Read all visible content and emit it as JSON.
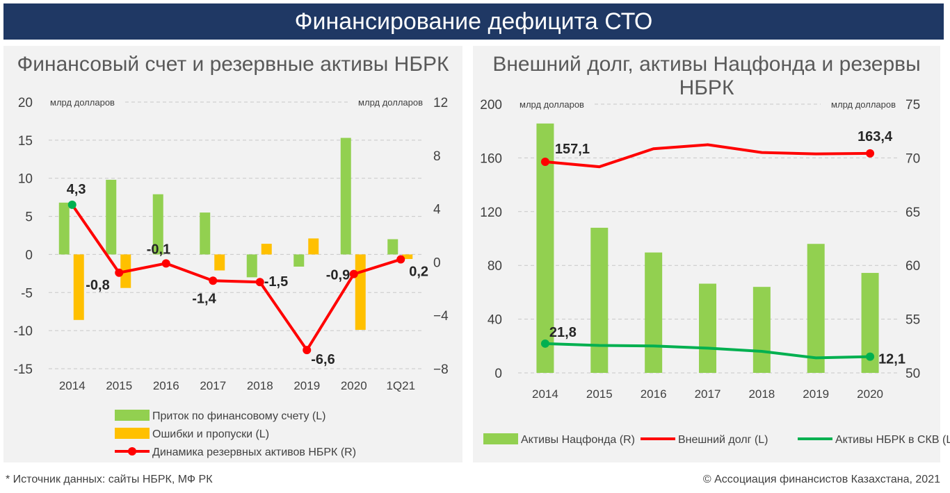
{
  "header": {
    "title": "Финансирование дефицита СТО"
  },
  "footer": {
    "source": "* Источник данных: сайты НБРК, МФ РК",
    "copyright": "© Ассоциация финансистов Казахстана, 2021"
  },
  "chart_data": [
    {
      "type": "bar",
      "title": "Финансовый счет и резервные активы НБРК",
      "categories": [
        "2014",
        "2015",
        "2016",
        "2017",
        "2018",
        "2019",
        "2020",
        "1Q21"
      ],
      "left_unit": "млрд долларов",
      "right_unit": "млрд долларов",
      "ylim": [
        -15,
        20
      ],
      "yticks": [
        20,
        15,
        10,
        5,
        0,
        -5,
        -10,
        -15
      ],
      "y2lim": [
        -8,
        12
      ],
      "y2ticks": [
        "12",
        "8",
        "4",
        "0",
        "-4",
        "-8"
      ],
      "series": [
        {
          "name": "Приток по финансовому счету (L)",
          "type": "bar",
          "axis": "left",
          "color": "#92d050",
          "values": [
            6.8,
            9.8,
            7.9,
            5.5,
            -3.0,
            -1.6,
            15.3,
            2.0
          ]
        },
        {
          "name": "Ошибки и пропуски (L)",
          "type": "bar",
          "axis": "left",
          "color": "#ffc000",
          "values": [
            -8.6,
            -4.4,
            0,
            -2.1,
            1.4,
            2.1,
            -9.9,
            -0.6
          ]
        },
        {
          "name": "Динамика резервных активов НБРК (R)",
          "type": "line",
          "axis": "right",
          "color": "#ff0000",
          "values": [
            4.3,
            -0.8,
            -0.1,
            -1.4,
            -1.5,
            -6.6,
            -0.9,
            0.2
          ],
          "labels": [
            "4,3",
            "-0,8",
            "-0,1",
            "-1,4",
            "-1,5",
            "-6,6",
            "-0,9",
            "0,2"
          ]
        }
      ],
      "legend": "bottom"
    },
    {
      "type": "bar",
      "title": "Внешний долг, активы Нацфонда и резервы НБРК",
      "categories": [
        "2014",
        "2015",
        "2016",
        "2017",
        "2018",
        "2019",
        "2020"
      ],
      "left_unit": "млрд долларов",
      "right_unit": "млрд долларов",
      "ylim": [
        0,
        200
      ],
      "yticks": [
        200,
        160,
        120,
        80,
        40,
        0
      ],
      "y2lim": [
        50,
        75
      ],
      "y2ticks": [
        75,
        70,
        65,
        60,
        55,
        50
      ],
      "series": [
        {
          "name": "Активы Нацфонда (R)",
          "type": "bar",
          "axis": "right",
          "color": "#92d050",
          "values": [
            73.2,
            63.5,
            61.2,
            58.3,
            58.0,
            62.0,
            59.3
          ]
        },
        {
          "name": "Внешний долг (L)",
          "type": "line",
          "axis": "left",
          "color": "#ff0000",
          "values": [
            157.1,
            153.4,
            166.8,
            169.8,
            164.0,
            163.0,
            163.4
          ],
          "labels": [
            "157,1",
            "",
            "",
            "",
            "",
            "",
            "163,4"
          ]
        },
        {
          "name": "Активы НБРК в СКВ (L)",
          "type": "line",
          "axis": "left",
          "color": "#00b050",
          "values": [
            21.8,
            20.4,
            20.0,
            18.4,
            16.0,
            11.2,
            12.1
          ],
          "labels": [
            "21,8",
            "",
            "",
            "",
            "",
            "",
            "12,1"
          ]
        }
      ],
      "legend": "bottom"
    }
  ]
}
